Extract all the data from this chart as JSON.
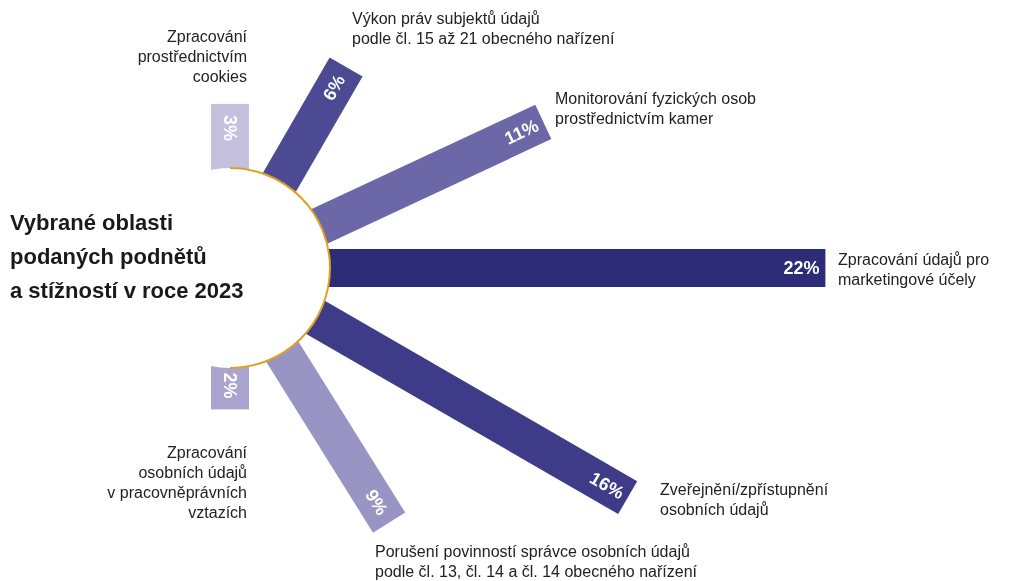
{
  "chart_data": {
    "type": "other",
    "title": "Vybrané oblasti\npodaných podnětů\na stížností v roce 2023",
    "categories": [
      "Zpracování\nprostřednictvím\ncookies",
      "Výkon práv subjektů údajů\npodle čl. 15 až 21 obecného nařízení",
      "Monitorování fyzických osob\nprostřednictvím kamer",
      "Zpracování údajů pro\nmarketingové účely",
      "Zveřejnění/zpřístupnění\nosobních údajů",
      "Porušení povinností správce osobních údajů\npodle čl. 13, čl. 14 a čl. 14 obecného nařízení",
      "Zpracování\nosobních údajů\nv pracovněprávních\nvztazích"
    ],
    "values": [
      3,
      6,
      11,
      22,
      16,
      9,
      2
    ],
    "value_labels": [
      "3%",
      "6%",
      "11%",
      "22%",
      "16%",
      "9%",
      "2%"
    ],
    "colors": [
      "#c4c0de",
      "#4c4a92",
      "#6c68a8",
      "#2d2c78",
      "#3e3c88",
      "#9894c4",
      "#a9a5d0"
    ]
  }
}
